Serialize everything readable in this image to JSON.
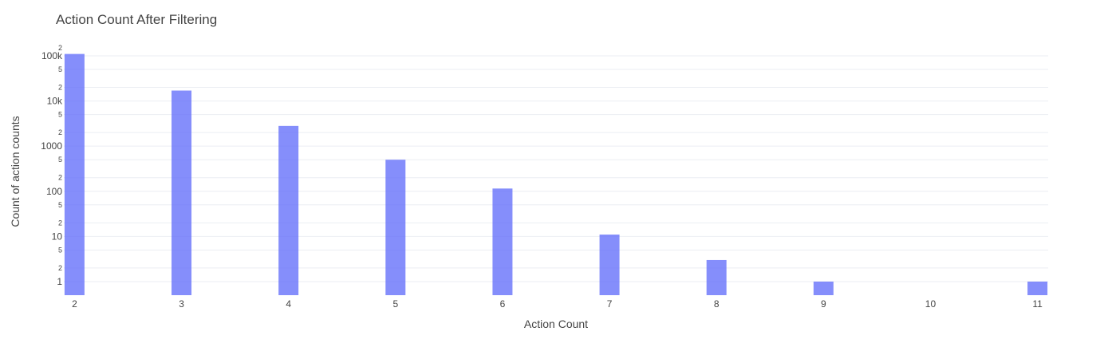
{
  "chart_data": {
    "type": "bar",
    "title": "Action Count After Filtering",
    "xlabel": "Action Count",
    "ylabel": "Count of action counts",
    "categories": [
      2,
      3,
      4,
      5,
      6,
      7,
      8,
      9,
      10,
      11
    ],
    "values": [
      110000,
      17000,
      2800,
      500,
      115,
      11,
      3,
      1,
      0,
      1
    ],
    "yscale": "log",
    "ylim": [
      0.5,
      150000
    ],
    "xlim": [
      1.9,
      11.1
    ],
    "y_major_ticks": [
      {
        "value": 1,
        "label": "1"
      },
      {
        "value": 10,
        "label": "10"
      },
      {
        "value": 100,
        "label": "100"
      },
      {
        "value": 1000,
        "label": "1000"
      },
      {
        "value": 10000,
        "label": "10k"
      },
      {
        "value": 100000,
        "label": "100k"
      }
    ],
    "y_minor_ticks": [
      {
        "value": 2,
        "label": "2"
      },
      {
        "value": 5,
        "label": "5"
      },
      {
        "value": 20,
        "label": "2"
      },
      {
        "value": 50,
        "label": "5"
      },
      {
        "value": 200,
        "label": "2"
      },
      {
        "value": 500,
        "label": "5"
      },
      {
        "value": 2000,
        "label": "2"
      },
      {
        "value": 5000,
        "label": "5"
      },
      {
        "value": 20000,
        "label": "2"
      },
      {
        "value": 50000,
        "label": "5"
      },
      {
        "value": 200000,
        "label": "2"
      }
    ],
    "x_ticks": [
      "2",
      "3",
      "4",
      "5",
      "6",
      "7",
      "8",
      "9",
      "10",
      "11"
    ],
    "grid": true,
    "bar_color": "#636efa",
    "legend": "none"
  }
}
